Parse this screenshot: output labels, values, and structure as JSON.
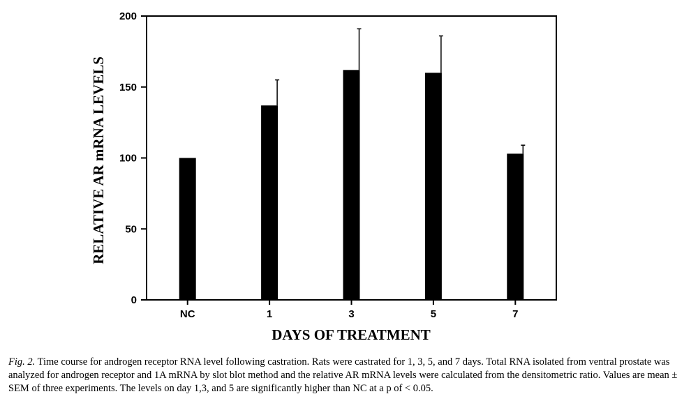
{
  "chart_data": {
    "type": "bar",
    "categories": [
      "NC",
      "1",
      "3",
      "5",
      "7"
    ],
    "values": [
      100,
      137,
      162,
      160,
      103
    ],
    "errors": [
      0,
      18,
      29,
      26,
      6
    ],
    "xlabel": "DAYS OF TREATMENT",
    "ylabel": "RELATIVE AR mRNA LEVELS",
    "ylim": [
      0,
      200
    ],
    "yticks": [
      0,
      50,
      100,
      150,
      200
    ],
    "grid": false,
    "bar_color": "#000000"
  },
  "caption": {
    "label": "Fig. 2.",
    "text": "Time course for androgen receptor RNA level following castration. Rats were castrated for 1, 3, 5, and 7 days. Total RNA isolated from ventral prostate was analyzed for androgen receptor and 1A mRNA by slot blot method and the relative AR mRNA levels were calculated from the densitometric ratio. Values are mean ± SEM of three experiments. The levels on day 1,3, and 5 are significantly higher than NC at a p of < 0.05."
  }
}
